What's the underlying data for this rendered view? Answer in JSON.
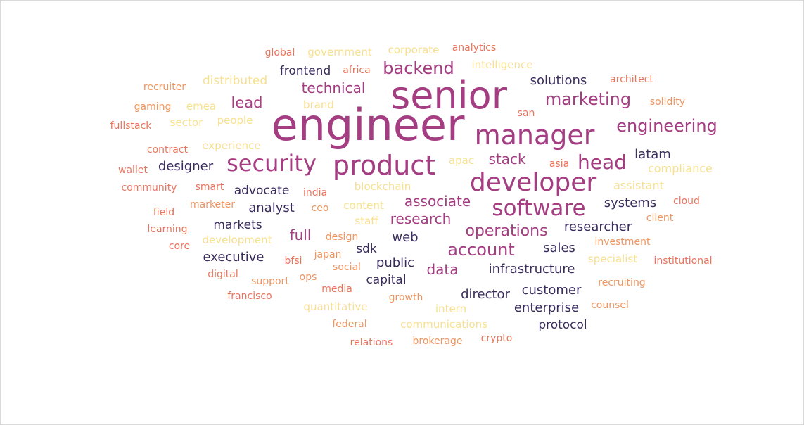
{
  "chart_data": {
    "type": "wordcloud",
    "title": "",
    "words": [
      {
        "text": "engineer",
        "weight": 100,
        "color": "#A43D82"
      },
      {
        "text": "senior",
        "weight": 78,
        "color": "#A43D82"
      },
      {
        "text": "manager",
        "weight": 60,
        "color": "#A43D82"
      },
      {
        "text": "developer",
        "weight": 55,
        "color": "#A43D82"
      },
      {
        "text": "product",
        "weight": 55,
        "color": "#A43D82"
      },
      {
        "text": "software",
        "weight": 47,
        "color": "#A43D82"
      },
      {
        "text": "security",
        "weight": 46,
        "color": "#A43D82"
      },
      {
        "text": "head",
        "weight": 38,
        "color": "#A43D82"
      },
      {
        "text": "engineering",
        "weight": 35,
        "color": "#A43D82"
      },
      {
        "text": "marketing",
        "weight": 35,
        "color": "#A43D82"
      },
      {
        "text": "account",
        "weight": 32,
        "color": "#A43D82"
      },
      {
        "text": "backend",
        "weight": 32,
        "color": "#A43D82"
      },
      {
        "text": "operations",
        "weight": 31,
        "color": "#A43D82"
      },
      {
        "text": "lead",
        "weight": 28,
        "color": "#A43D82"
      },
      {
        "text": "stack",
        "weight": 28,
        "color": "#A43D82"
      },
      {
        "text": "technical",
        "weight": 28,
        "color": "#A43D82"
      },
      {
        "text": "associate",
        "weight": 27,
        "color": "#A43D82"
      },
      {
        "text": "research",
        "weight": 27,
        "color": "#A43D82"
      },
      {
        "text": "full",
        "weight": 27,
        "color": "#A43D82"
      },
      {
        "text": "data",
        "weight": 26,
        "color": "#A43D82"
      },
      {
        "text": "solutions",
        "weight": 25,
        "color": "#3A2D5E"
      },
      {
        "text": "analyst",
        "weight": 25,
        "color": "#3A2D5E"
      },
      {
        "text": "researcher",
        "weight": 25,
        "color": "#3A2D5E"
      },
      {
        "text": "systems",
        "weight": 24,
        "color": "#3A2D5E"
      },
      {
        "text": "customer",
        "weight": 24,
        "color": "#3A2D5E"
      },
      {
        "text": "director",
        "weight": 24,
        "color": "#3A2D5E"
      },
      {
        "text": "enterprise",
        "weight": 24,
        "color": "#3A2D5E"
      },
      {
        "text": "infrastructure",
        "weight": 23,
        "color": "#3A2D5E"
      },
      {
        "text": "executive",
        "weight": 23,
        "color": "#3A2D5E"
      },
      {
        "text": "designer",
        "weight": 22,
        "color": "#3A2D5E"
      },
      {
        "text": "latam",
        "weight": 22,
        "color": "#3A2D5E"
      },
      {
        "text": "web",
        "weight": 22,
        "color": "#3A2D5E"
      },
      {
        "text": "sales",
        "weight": 22,
        "color": "#3A2D5E"
      },
      {
        "text": "public",
        "weight": 22,
        "color": "#3A2D5E"
      },
      {
        "text": "capital",
        "weight": 21,
        "color": "#3A2D5E"
      },
      {
        "text": "markets",
        "weight": 21,
        "color": "#3A2D5E"
      },
      {
        "text": "advocate",
        "weight": 21,
        "color": "#3A2D5E"
      },
      {
        "text": "frontend",
        "weight": 21,
        "color": "#3A2D5E"
      },
      {
        "text": "protocol",
        "weight": 21,
        "color": "#3A2D5E"
      },
      {
        "text": "sdk",
        "weight": 20,
        "color": "#3A2D5E"
      },
      {
        "text": "distributed",
        "weight": 20,
        "color": "#F7E08F"
      },
      {
        "text": "compliance",
        "weight": 19,
        "color": "#F7E08F"
      },
      {
        "text": "assistant",
        "weight": 19,
        "color": "#F7E08F"
      },
      {
        "text": "intelligence",
        "weight": 18,
        "color": "#F7E08F"
      },
      {
        "text": "government",
        "weight": 18,
        "color": "#F7E08F"
      },
      {
        "text": "corporate",
        "weight": 18,
        "color": "#F7E08F"
      },
      {
        "text": "people",
        "weight": 18,
        "color": "#F7E08F"
      },
      {
        "text": "experience",
        "weight": 18,
        "color": "#F7E08F"
      },
      {
        "text": "content",
        "weight": 18,
        "color": "#F7E08F"
      },
      {
        "text": "blockchain",
        "weight": 18,
        "color": "#F7E08F"
      },
      {
        "text": "development",
        "weight": 18,
        "color": "#F7E08F"
      },
      {
        "text": "specialist",
        "weight": 18,
        "color": "#F7E08F"
      },
      {
        "text": "quantitative",
        "weight": 18,
        "color": "#F7E08F"
      },
      {
        "text": "communications",
        "weight": 18,
        "color": "#F7E08F"
      },
      {
        "text": "intern",
        "weight": 18,
        "color": "#F7E08F"
      },
      {
        "text": "sector",
        "weight": 17,
        "color": "#F7E08F"
      },
      {
        "text": "emea",
        "weight": 17,
        "color": "#F7E08F"
      },
      {
        "text": "brand",
        "weight": 17,
        "color": "#F7E08F"
      },
      {
        "text": "apac",
        "weight": 17,
        "color": "#F7E08F"
      },
      {
        "text": "staff",
        "weight": 17,
        "color": "#F7E08F"
      },
      {
        "text": "analytics",
        "weight": 17,
        "color": "#E8745D"
      },
      {
        "text": "architect",
        "weight": 17,
        "color": "#E8745D"
      },
      {
        "text": "institutional",
        "weight": 17,
        "color": "#E8745D"
      },
      {
        "text": "global",
        "weight": 17,
        "color": "#E8745D"
      },
      {
        "text": "africa",
        "weight": 17,
        "color": "#E8745D"
      },
      {
        "text": "fullstack",
        "weight": 17,
        "color": "#E8745D"
      },
      {
        "text": "contract",
        "weight": 17,
        "color": "#E8745D"
      },
      {
        "text": "wallet",
        "weight": 17,
        "color": "#E8745D"
      },
      {
        "text": "community",
        "weight": 17,
        "color": "#E8745D"
      },
      {
        "text": "field",
        "weight": 17,
        "color": "#E8745D"
      },
      {
        "text": "learning",
        "weight": 17,
        "color": "#E8745D"
      },
      {
        "text": "core",
        "weight": 17,
        "color": "#E8745D"
      },
      {
        "text": "digital",
        "weight": 17,
        "color": "#E8745D"
      },
      {
        "text": "francisco",
        "weight": 17,
        "color": "#E8745D"
      },
      {
        "text": "relations",
        "weight": 17,
        "color": "#E8745D"
      },
      {
        "text": "crypto",
        "weight": 17,
        "color": "#E8745D"
      },
      {
        "text": "cloud",
        "weight": 17,
        "color": "#E8745D"
      },
      {
        "text": "bfsi",
        "weight": 17,
        "color": "#E8745D"
      },
      {
        "text": "media",
        "weight": 17,
        "color": "#E8745D"
      },
      {
        "text": "india",
        "weight": 17,
        "color": "#E8745D"
      },
      {
        "text": "smart",
        "weight": 17,
        "color": "#E8745D"
      },
      {
        "text": "asia",
        "weight": 17,
        "color": "#E8745D"
      },
      {
        "text": "san",
        "weight": 17,
        "color": "#E8745D"
      },
      {
        "text": "recruiter",
        "weight": 17,
        "color": "#EE955F"
      },
      {
        "text": "gaming",
        "weight": 17,
        "color": "#EE955F"
      },
      {
        "text": "solidity",
        "weight": 17,
        "color": "#EE955F"
      },
      {
        "text": "marketer",
        "weight": 17,
        "color": "#EE955F"
      },
      {
        "text": "client",
        "weight": 17,
        "color": "#EE955F"
      },
      {
        "text": "investment",
        "weight": 17,
        "color": "#EE955F"
      },
      {
        "text": "recruiting",
        "weight": 17,
        "color": "#EE955F"
      },
      {
        "text": "counsel",
        "weight": 17,
        "color": "#EE955F"
      },
      {
        "text": "ceo",
        "weight": 17,
        "color": "#EE955F"
      },
      {
        "text": "design",
        "weight": 17,
        "color": "#EE955F"
      },
      {
        "text": "japan",
        "weight": 17,
        "color": "#EE955F"
      },
      {
        "text": "social",
        "weight": 17,
        "color": "#EE955F"
      },
      {
        "text": "support",
        "weight": 17,
        "color": "#EE955F"
      },
      {
        "text": "ops",
        "weight": 17,
        "color": "#EE955F"
      },
      {
        "text": "growth",
        "weight": 17,
        "color": "#EE955F"
      },
      {
        "text": "federal",
        "weight": 17,
        "color": "#EE955F"
      },
      {
        "text": "brokerage",
        "weight": 17,
        "color": "#EE955F"
      }
    ]
  }
}
